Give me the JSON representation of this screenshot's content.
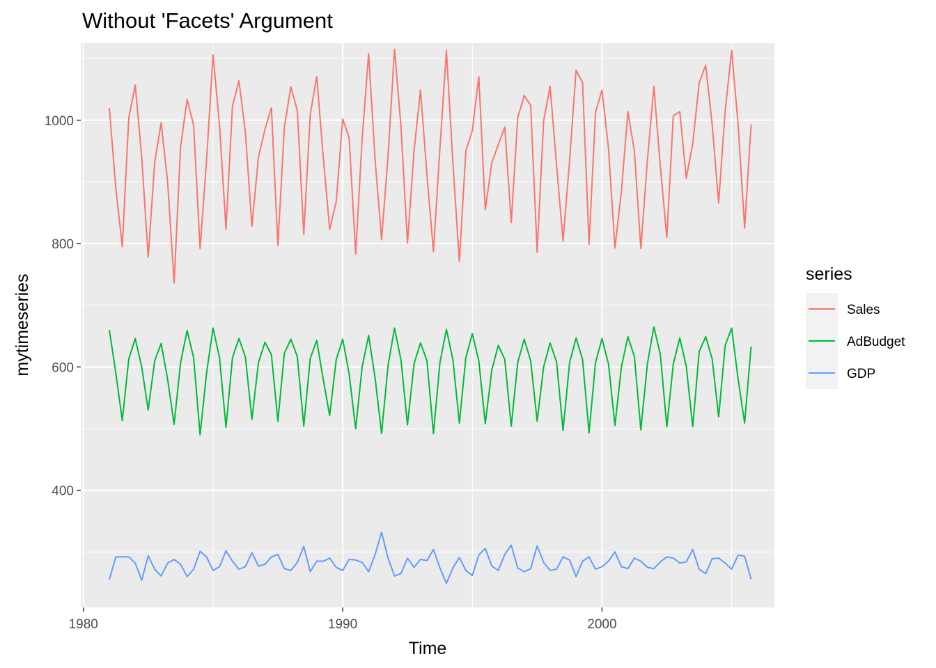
{
  "chart_data": {
    "type": "line",
    "title": "Without 'Facets' Argument",
    "xlabel": "Time",
    "ylabel": "mytimeseries",
    "xlim": [
      1979.9,
      2006.65
    ],
    "ylim": [
      210,
      1125
    ],
    "x_ticks": [
      1980,
      1990,
      2000
    ],
    "x_tick_labels": [
      "1980",
      "1990",
      "2000"
    ],
    "y_ticks": [
      400,
      600,
      800,
      1000
    ],
    "y_tick_labels": [
      "400",
      "600",
      "800",
      "1000"
    ],
    "grid": true,
    "legend": {
      "title": "series",
      "placement": "right"
    },
    "x_start": 1981.0,
    "x_step": 0.25,
    "series": [
      {
        "name": "Sales",
        "color": "#F8766D",
        "values": [
          1020,
          890,
          795,
          1004,
          1057,
          940,
          778,
          932,
          996,
          900,
          736,
          957,
          1034,
          992,
          792,
          935,
          1106,
          992,
          823,
          1023,
          1064,
          980,
          828,
          940,
          985,
          1020,
          797,
          988,
          1054,
          1016,
          815,
          1009,
          1071,
          941,
          823,
          868,
          1002,
          971,
          783,
          970,
          1108,
          936,
          806,
          942,
          1115,
          989,
          801,
          950,
          1049,
          911,
          787,
          955,
          1113,
          931,
          771,
          950,
          983,
          1071,
          855,
          931,
          960,
          989,
          834,
          1004,
          1040,
          1024,
          786,
          999,
          1055,
          927,
          804,
          935,
          1081,
          1061,
          799,
          1013,
          1049,
          955,
          793,
          885,
          1014,
          950,
          792,
          935,
          1055,
          925,
          810,
          1007,
          1014,
          906,
          962,
          1061,
          1089,
          993,
          866,
          1016,
          1113,
          993,
          825,
          993
        ]
      },
      {
        "name": "AdBudget",
        "color": "#00BA38",
        "values": [
          660,
          590,
          513,
          613,
          646,
          600,
          530,
          610,
          638,
          580,
          507,
          607,
          659,
          615,
          490,
          590,
          663,
          615,
          502,
          615,
          646,
          616,
          515,
          607,
          640,
          620,
          512,
          622,
          645,
          617,
          504,
          614,
          643,
          580,
          521,
          612,
          645,
          588,
          500,
          600,
          651,
          582,
          492,
          602,
          663,
          611,
          506,
          605,
          639,
          610,
          492,
          607,
          661,
          612,
          509,
          615,
          654,
          610,
          508,
          595,
          635,
          612,
          504,
          607,
          645,
          610,
          512,
          600,
          639,
          608,
          497,
          607,
          647,
          612,
          493,
          607,
          646,
          605,
          505,
          600,
          649,
          617,
          498,
          605,
          665,
          620,
          503,
          605,
          647,
          601,
          503,
          625,
          649,
          613,
          519,
          635,
          663,
          580,
          509,
          633
        ]
      },
      {
        "name": "GDP",
        "color": "#619CFF",
        "values": [
          255,
          292,
          292,
          292,
          282,
          254,
          294,
          272,
          261,
          282,
          288,
          280,
          260,
          272,
          301,
          292,
          270,
          276,
          302,
          285,
          272,
          276,
          299,
          277,
          280,
          292,
          296,
          273,
          270,
          283,
          309,
          268,
          285,
          285,
          290,
          275,
          270,
          288,
          287,
          283,
          268,
          296,
          332,
          290,
          261,
          265,
          290,
          275,
          288,
          286,
          304,
          274,
          249,
          274,
          291,
          270,
          262,
          295,
          306,
          277,
          270,
          296,
          311,
          274,
          268,
          273,
          310,
          283,
          270,
          272,
          292,
          287,
          260,
          285,
          292,
          272,
          276,
          285,
          300,
          276,
          273,
          290,
          285,
          275,
          273,
          284,
          292,
          290,
          282,
          284,
          304,
          272,
          265,
          289,
          290,
          282,
          272,
          295,
          293,
          256
        ]
      }
    ]
  }
}
